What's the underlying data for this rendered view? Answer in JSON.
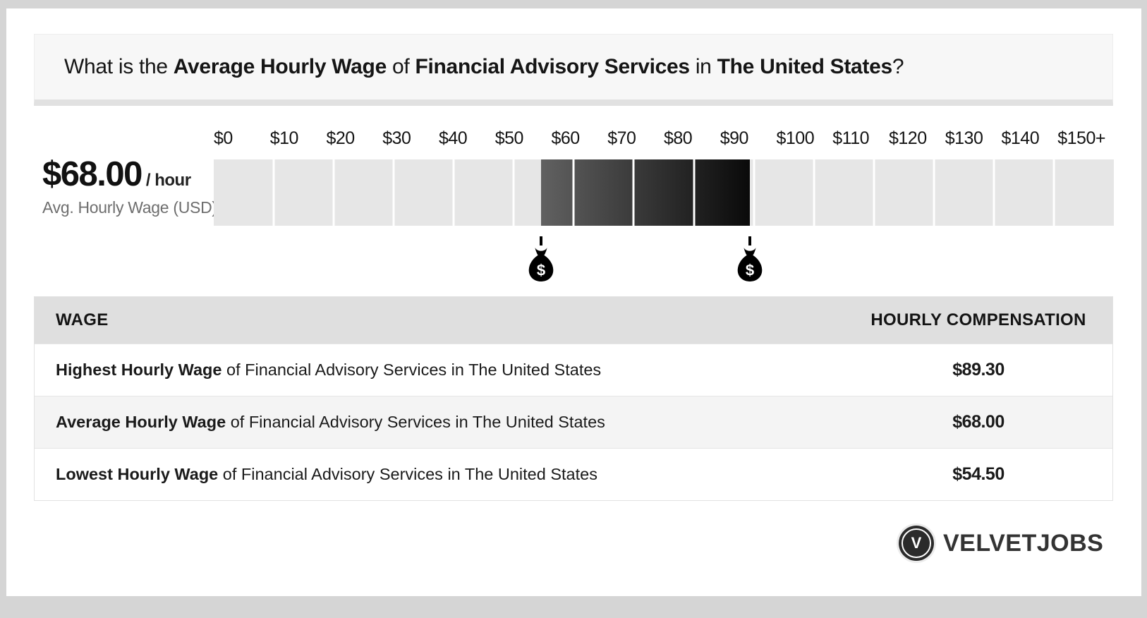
{
  "title": {
    "pre": "What is the ",
    "bold1": "Average Hourly Wage",
    "mid1": " of ",
    "bold2": "Financial Advisory Services",
    "mid2": " in ",
    "bold3": "The United States",
    "end": "?"
  },
  "stat": {
    "value": "$68.00",
    "unit": "/ hour",
    "label": "Avg. Hourly Wage (USD)"
  },
  "chart_data": {
    "type": "bar",
    "subtype": "horizontal-range-gauge",
    "title": "What is the Average Hourly Wage of Financial Advisory Services in The United States?",
    "axis": {
      "ticks": [
        "$0",
        "$10",
        "$20",
        "$30",
        "$40",
        "$50",
        "$60",
        "$70",
        "$80",
        "$90",
        "$100",
        "$110",
        "$120",
        "$130",
        "$140",
        "$150+"
      ],
      "min": 0,
      "max": 150,
      "segment_count": 15,
      "grid": false
    },
    "range": {
      "low": 54.5,
      "high": 89.3,
      "average": 68.0
    },
    "markers": [
      {
        "value": 54.5,
        "icon": "money-bag"
      },
      {
        "value": 89.3,
        "icon": "money-bag"
      }
    ],
    "colors": {
      "track": "#e6e6e6",
      "range_gradient_start": "#616161",
      "range_gradient_end": "#0a0a0a",
      "divider": "#ffffff"
    },
    "money_bag_symbol": "$"
  },
  "table": {
    "headers": {
      "wage": "WAGE",
      "compensation": "HOURLY COMPENSATION"
    },
    "rows": [
      {
        "bold": "Highest Hourly Wage",
        "rest": " of Financial Advisory Services in The United States",
        "value": "$89.30"
      },
      {
        "bold": "Average Hourly Wage",
        "rest": " of Financial Advisory Services in The United States",
        "value": "$68.00"
      },
      {
        "bold": "Lowest Hourly Wage",
        "rest": " of Financial Advisory Services in The United States",
        "value": "$54.50"
      }
    ]
  },
  "brand": {
    "name": "VELVETJOBS",
    "initial": "V"
  }
}
